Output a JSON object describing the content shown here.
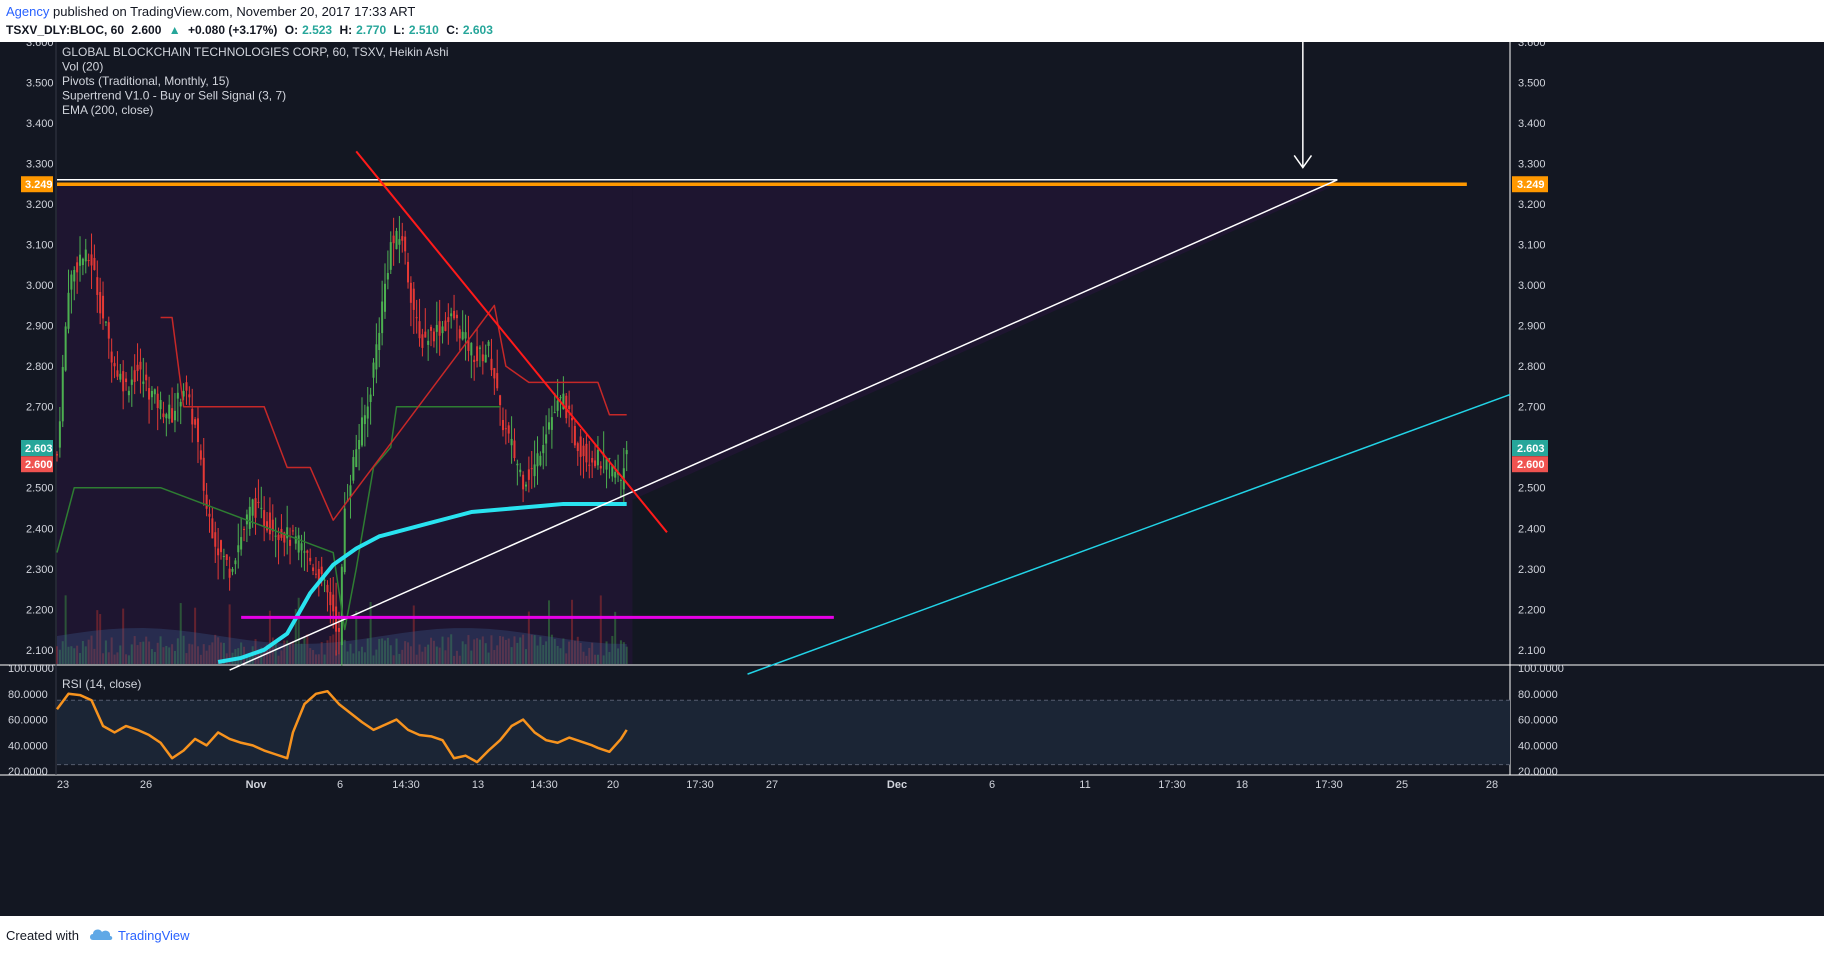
{
  "header": {
    "author": "Agency",
    "published": "published on TradingView.com, November 20, 2017 17:33 ART",
    "symbol": "TSXV_DLY:BLOC, 60",
    "last": "2.600",
    "change": "+0.080 (+3.17%)",
    "open_label": "O:",
    "open": "2.523",
    "high_label": "H:",
    "high": "2.770",
    "low_label": "L:",
    "low": "2.510",
    "close_label": "C:",
    "close": "2.603"
  },
  "legend": [
    "GLOBAL BLOCKCHAIN TECHNOLOGIES CORP, 60, TSXV, Heikin Ashi",
    "Vol (20)",
    "Pivots (Traditional, Monthly, 15)",
    "Supertrend V1.0 - Buy or Sell Signal (3, 7)",
    "EMA (200, close)"
  ],
  "rsi_label": "RSI (14, close)",
  "footer": {
    "created": "Created with",
    "brand": "TradingView"
  },
  "colors": {
    "background": "#131722",
    "pivot_zone": "#1e1530",
    "up": "#4caf50",
    "down": "#e53935",
    "ema": "#29e3f0",
    "rsi": "#f7931e",
    "resistance": "#ff9800",
    "support": "#e600e6",
    "trend_red": "#ff1a1a",
    "channel_cyan": "#22d3e6"
  },
  "chart_data": {
    "type": "candlestick",
    "price_axis": {
      "ticks": [
        "3.600",
        "3.500",
        "3.400",
        "3.300",
        "3.200",
        "3.100",
        "3.000",
        "2.900",
        "2.800",
        "2.700",
        "2.600",
        "2.500",
        "2.400",
        "2.300",
        "2.200",
        "2.100"
      ],
      "ylim": [
        2.065,
        3.6
      ]
    },
    "price_labels": [
      {
        "value": 3.249,
        "text": "3.249",
        "color": "#ff9800"
      },
      {
        "value": 2.603,
        "text": "2.603",
        "color": "#26a69a"
      },
      {
        "value": 2.6,
        "text": "2.600",
        "color": "#ef5350"
      }
    ],
    "x_axis_labels": [
      "23",
      "26",
      "Nov",
      "6",
      "14:30",
      "13",
      "14:30",
      "20",
      "17:30",
      "27",
      "Dec",
      "6",
      "11",
      "17:30",
      "18",
      "17:30",
      "25",
      "28"
    ],
    "rsi_axis": {
      "ticks": [
        "100.0000",
        "80.0000",
        "60.0000",
        "40.0000",
        "20.0000"
      ],
      "ylim": [
        17,
        100
      ],
      "bands": [
        75,
        25
      ]
    },
    "close_path": [
      [
        0,
        2.58
      ],
      [
        4,
        3.0
      ],
      [
        8,
        3.07
      ],
      [
        12,
        3.06
      ],
      [
        16,
        2.92
      ],
      [
        20,
        2.8
      ],
      [
        24,
        2.75
      ],
      [
        28,
        2.79
      ],
      [
        32,
        2.74
      ],
      [
        36,
        2.7
      ],
      [
        40,
        2.68
      ],
      [
        44,
        2.75
      ],
      [
        48,
        2.65
      ],
      [
        50,
        2.55
      ],
      [
        52,
        2.45
      ],
      [
        56,
        2.35
      ],
      [
        60,
        2.3
      ],
      [
        64,
        2.38
      ],
      [
        68,
        2.46
      ],
      [
        72,
        2.42
      ],
      [
        76,
        2.4
      ],
      [
        80,
        2.38
      ],
      [
        84,
        2.36
      ],
      [
        88,
        2.32
      ],
      [
        92,
        2.27
      ],
      [
        96,
        2.2
      ],
      [
        98,
        2.13
      ],
      [
        100,
        2.45
      ],
      [
        104,
        2.6
      ],
      [
        108,
        2.7
      ],
      [
        112,
        2.9
      ],
      [
        116,
        3.1
      ],
      [
        120,
        3.12
      ],
      [
        122,
        3.02
      ],
      [
        126,
        2.86
      ],
      [
        130,
        2.88
      ],
      [
        134,
        2.9
      ],
      [
        138,
        2.92
      ],
      [
        142,
        2.86
      ],
      [
        146,
        2.82
      ],
      [
        150,
        2.84
      ],
      [
        152,
        2.78
      ],
      [
        154,
        2.68
      ],
      [
        158,
        2.6
      ],
      [
        162,
        2.52
      ],
      [
        166,
        2.55
      ],
      [
        170,
        2.65
      ],
      [
        174,
        2.7
      ],
      [
        176,
        2.72
      ],
      [
        180,
        2.62
      ],
      [
        184,
        2.58
      ],
      [
        188,
        2.57
      ],
      [
        192,
        2.55
      ],
      [
        196,
        2.52
      ],
      [
        198,
        2.6
      ]
    ],
    "rsi_path": [
      [
        0,
        68
      ],
      [
        4,
        80
      ],
      [
        8,
        79
      ],
      [
        12,
        75
      ],
      [
        16,
        55
      ],
      [
        20,
        50
      ],
      [
        24,
        55
      ],
      [
        28,
        52
      ],
      [
        32,
        48
      ],
      [
        36,
        42
      ],
      [
        40,
        30
      ],
      [
        44,
        36
      ],
      [
        48,
        45
      ],
      [
        52,
        40
      ],
      [
        56,
        50
      ],
      [
        60,
        45
      ],
      [
        64,
        42
      ],
      [
        68,
        40
      ],
      [
        72,
        36
      ],
      [
        76,
        33
      ],
      [
        80,
        30
      ],
      [
        82,
        50
      ],
      [
        86,
        72
      ],
      [
        90,
        80
      ],
      [
        94,
        82
      ],
      [
        98,
        72
      ],
      [
        102,
        65
      ],
      [
        106,
        58
      ],
      [
        110,
        52
      ],
      [
        114,
        56
      ],
      [
        118,
        60
      ],
      [
        122,
        52
      ],
      [
        126,
        48
      ],
      [
        130,
        47
      ],
      [
        134,
        44
      ],
      [
        138,
        30
      ],
      [
        142,
        32
      ],
      [
        146,
        27
      ],
      [
        150,
        36
      ],
      [
        154,
        44
      ],
      [
        158,
        55
      ],
      [
        162,
        60
      ],
      [
        166,
        50
      ],
      [
        170,
        44
      ],
      [
        174,
        42
      ],
      [
        178,
        46
      ],
      [
        182,
        43
      ],
      [
        186,
        40
      ],
      [
        188,
        38
      ],
      [
        192,
        35
      ],
      [
        196,
        45
      ],
      [
        198,
        52
      ]
    ],
    "ema_path": [
      [
        56,
        2.07
      ],
      [
        64,
        2.08
      ],
      [
        72,
        2.1
      ],
      [
        80,
        2.14
      ],
      [
        88,
        2.24
      ],
      [
        96,
        2.31
      ],
      [
        104,
        2.35
      ],
      [
        112,
        2.38
      ],
      [
        120,
        2.395
      ],
      [
        128,
        2.41
      ],
      [
        136,
        2.425
      ],
      [
        144,
        2.44
      ],
      [
        152,
        2.445
      ],
      [
        160,
        2.45
      ],
      [
        168,
        2.455
      ],
      [
        176,
        2.46
      ],
      [
        184,
        2.46
      ],
      [
        192,
        2.46
      ],
      [
        198,
        2.46
      ]
    ],
    "supertrend_up": [
      [
        0,
        2.34
      ],
      [
        6,
        2.5
      ],
      [
        30,
        2.5
      ],
      [
        36,
        2.5
      ],
      [
        96,
        2.34
      ],
      [
        100,
        2.15
      ],
      [
        104,
        2.3
      ],
      [
        110,
        2.55
      ],
      [
        116,
        2.6
      ],
      [
        118,
        2.7
      ],
      [
        140,
        2.7
      ],
      [
        154,
        2.7
      ]
    ],
    "supertrend_down": [
      [
        36,
        2.92
      ],
      [
        40,
        2.92
      ],
      [
        44,
        2.7
      ],
      [
        72,
        2.7
      ],
      [
        80,
        2.55
      ],
      [
        88,
        2.55
      ],
      [
        96,
        2.42
      ],
      [
        152,
        2.95
      ],
      [
        156,
        2.8
      ],
      [
        164,
        2.76
      ],
      [
        172,
        2.76
      ],
      [
        180,
        2.76
      ],
      [
        188,
        2.76
      ],
      [
        192,
        2.68
      ],
      [
        198,
        2.68
      ]
    ],
    "lines": [
      {
        "name": "resistance-3249",
        "from": [
          0,
          3.249
        ],
        "to": [
          490,
          3.249
        ]
      },
      {
        "name": "triangle-top",
        "from": [
          0,
          3.26
        ],
        "to": [
          445,
          3.26
        ]
      },
      {
        "name": "ascending-trend",
        "from": [
          60,
          2.05
        ],
        "to": [
          445,
          3.26
        ]
      },
      {
        "name": "descending-trend",
        "from": [
          104,
          3.33
        ],
        "to": [
          212,
          2.39
        ]
      },
      {
        "name": "support-2180",
        "from": [
          64,
          2.18
        ],
        "to": [
          270,
          2.18
        ]
      },
      {
        "name": "parallel-channel",
        "from": [
          240,
          2.04
        ],
        "to": [
          505,
          2.73
        ]
      }
    ],
    "bar_count_visible": 505
  }
}
